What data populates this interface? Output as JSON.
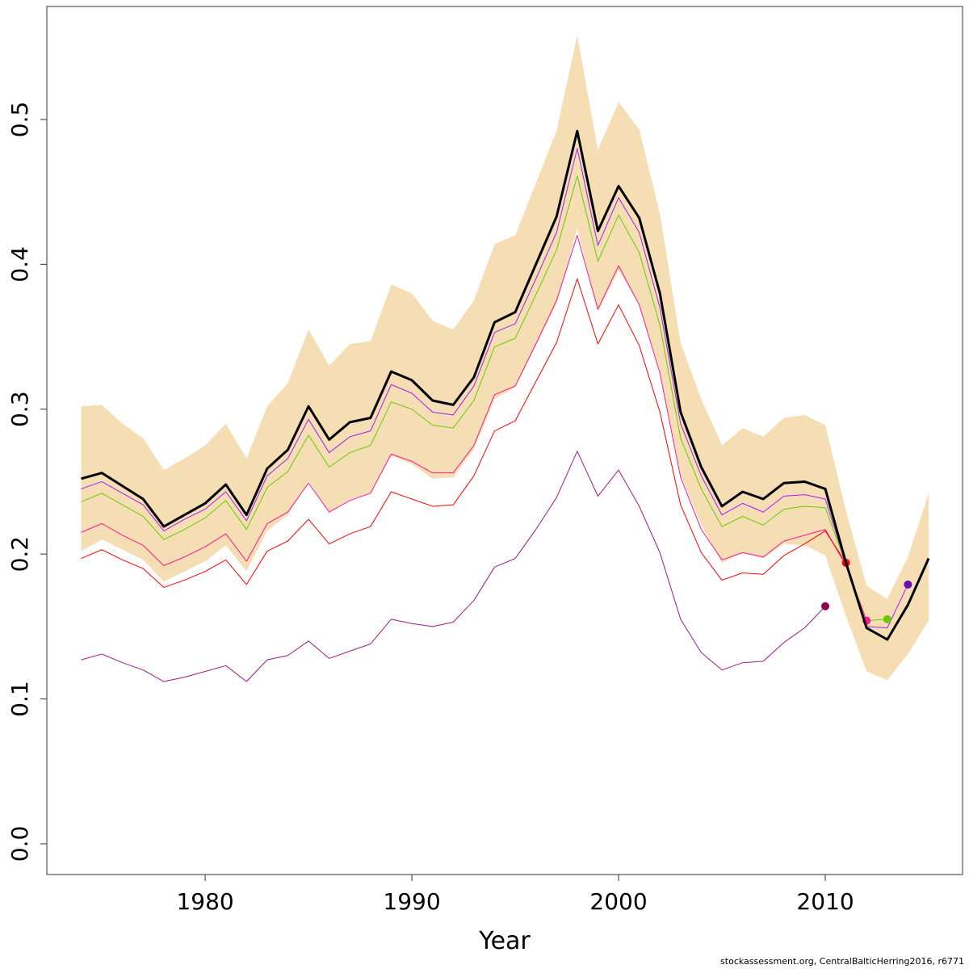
{
  "chart_data": {
    "type": "line",
    "xlabel": "Year",
    "footnote": "stockassessment.org, CentralBalticHerring2016, r6771",
    "x": [
      1974,
      1975,
      1976,
      1977,
      1978,
      1979,
      1980,
      1981,
      1982,
      1983,
      1984,
      1985,
      1986,
      1987,
      1988,
      1989,
      1990,
      1991,
      1992,
      1993,
      1994,
      1995,
      1996,
      1997,
      1998,
      1999,
      2000,
      2001,
      2002,
      2003,
      2004,
      2005,
      2006,
      2007,
      2008,
      2009,
      2010,
      2011,
      2012,
      2013,
      2014,
      2015
    ],
    "band": {
      "color": "#f5deb3",
      "upper": [
        0.302,
        0.303,
        0.29,
        0.28,
        0.258,
        0.266,
        0.275,
        0.29,
        0.266,
        0.302,
        0.318,
        0.355,
        0.33,
        0.345,
        0.347,
        0.386,
        0.38,
        0.361,
        0.355,
        0.375,
        0.414,
        0.42,
        0.456,
        0.492,
        0.558,
        0.479,
        0.512,
        0.493,
        0.435,
        0.346,
        0.307,
        0.275,
        0.287,
        0.281,
        0.294,
        0.296,
        0.289,
        0.23,
        0.178,
        0.169,
        0.198,
        0.242
      ],
      "lower": [
        0.202,
        0.21,
        0.203,
        0.196,
        0.181,
        0.188,
        0.195,
        0.206,
        0.188,
        0.216,
        0.227,
        0.25,
        0.229,
        0.238,
        0.242,
        0.268,
        0.262,
        0.252,
        0.253,
        0.272,
        0.307,
        0.315,
        0.344,
        0.373,
        0.425,
        0.367,
        0.396,
        0.372,
        0.327,
        0.255,
        0.22,
        0.194,
        0.201,
        0.197,
        0.207,
        0.206,
        0.199,
        0.157,
        0.119,
        0.113,
        0.131,
        0.154
      ]
    },
    "series": [
      {
        "color": "#a020f0",
        "values": [
          0.245,
          0.25,
          0.242,
          0.234,
          0.216,
          0.224,
          0.231,
          0.243,
          0.223,
          0.254,
          0.266,
          0.293,
          0.27,
          0.281,
          0.285,
          0.317,
          0.311,
          0.298,
          0.296,
          0.316,
          0.353,
          0.359,
          0.39,
          0.422,
          0.48,
          0.413,
          0.446,
          0.422,
          0.37,
          0.29,
          0.254,
          0.227,
          0.235,
          0.229,
          0.24,
          0.241,
          0.238,
          0.193,
          0.15,
          0.149,
          0.179,
          null
        ],
        "point_color": "#6a0dad"
      },
      {
        "color": "#66cc00",
        "values": [
          0.236,
          0.242,
          0.234,
          0.226,
          0.21,
          0.217,
          0.225,
          0.237,
          0.217,
          0.246,
          0.257,
          0.282,
          0.26,
          0.27,
          0.275,
          0.305,
          0.3,
          0.289,
          0.287,
          0.306,
          0.343,
          0.349,
          0.379,
          0.41,
          0.461,
          0.402,
          0.434,
          0.408,
          0.358,
          0.28,
          0.245,
          0.219,
          0.226,
          0.22,
          0.231,
          0.233,
          0.232,
          0.193,
          0.154,
          0.155,
          null,
          null
        ],
        "point_color": "#66cc00"
      },
      {
        "color": "#ff1493",
        "values": [
          0.215,
          0.221,
          0.213,
          0.206,
          0.192,
          0.198,
          0.205,
          0.214,
          0.195,
          0.221,
          0.229,
          0.249,
          0.229,
          0.237,
          0.242,
          0.269,
          0.264,
          0.256,
          0.256,
          0.275,
          0.31,
          0.316,
          0.345,
          0.375,
          0.42,
          0.369,
          0.399,
          0.372,
          0.325,
          0.253,
          0.217,
          0.196,
          0.201,
          0.198,
          0.209,
          0.213,
          0.217,
          0.192,
          0.154,
          null,
          null,
          null
        ],
        "point_color": "#ff1493"
      },
      {
        "color": "#ff0000",
        "values": [
          0.197,
          0.203,
          0.196,
          0.19,
          0.177,
          0.182,
          0.188,
          0.196,
          0.179,
          0.202,
          0.209,
          0.224,
          0.207,
          0.214,
          0.219,
          0.243,
          0.238,
          0.233,
          0.234,
          0.254,
          0.285,
          0.292,
          0.319,
          0.346,
          0.39,
          0.345,
          0.372,
          0.344,
          0.298,
          0.234,
          0.201,
          0.182,
          0.187,
          0.186,
          0.199,
          0.207,
          0.216,
          0.194,
          null,
          null,
          null,
          null
        ],
        "point_color": "#ff0000"
      },
      {
        "color": "#9b1a8a",
        "values": [
          0.127,
          0.131,
          0.125,
          0.12,
          0.112,
          0.115,
          0.119,
          0.123,
          0.112,
          0.127,
          0.13,
          0.14,
          0.128,
          0.133,
          0.138,
          0.155,
          0.152,
          0.15,
          0.153,
          0.168,
          0.191,
          0.197,
          0.217,
          0.239,
          0.271,
          0.24,
          0.258,
          0.233,
          0.201,
          0.155,
          0.132,
          0.12,
          0.125,
          0.126,
          0.139,
          0.149,
          0.164,
          null,
          null,
          null,
          null,
          null
        ],
        "point_color": "#8b0057"
      },
      {
        "color": "#000000",
        "values": [
          0.252,
          0.256,
          0.247,
          0.238,
          0.219,
          0.227,
          0.235,
          0.248,
          0.227,
          0.259,
          0.272,
          0.302,
          0.279,
          0.291,
          0.294,
          0.326,
          0.32,
          0.306,
          0.303,
          0.322,
          0.36,
          0.367,
          0.4,
          0.433,
          0.492,
          0.423,
          0.454,
          0.432,
          0.38,
          0.298,
          0.26,
          0.233,
          0.243,
          0.238,
          0.249,
          0.25,
          0.245,
          0.194,
          0.149,
          0.141,
          0.165,
          0.197
        ],
        "width": 3
      }
    ],
    "xlim": [
      1972.34,
      2016.64
    ],
    "xticks": [
      1980,
      1990,
      2000,
      2010
    ],
    "ylim": [
      -0.0212,
      0.578
    ],
    "yticks": [
      {
        "value": 0,
        "label": "0.0"
      },
      0.1,
      0.2,
      0.3,
      0.4,
      0.5
    ]
  }
}
